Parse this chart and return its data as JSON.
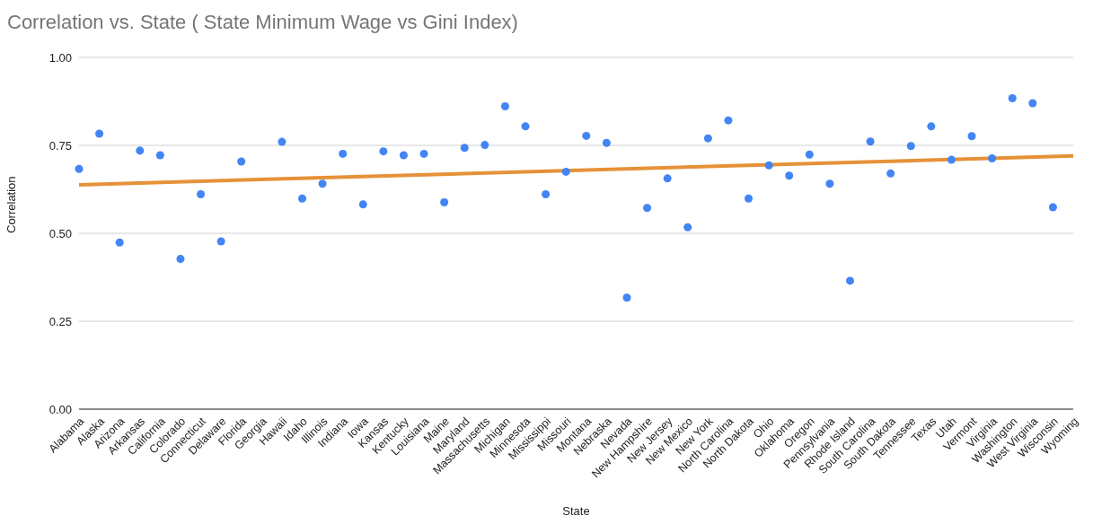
{
  "chart_data": {
    "type": "scatter",
    "title": "Correlation vs. State ( State Minimum Wage vs Gini Index)",
    "xlabel": "State",
    "ylabel": "Correlation",
    "categories": [
      "Alabama",
      "Alaska",
      "Arizona",
      "Arkansas",
      "California",
      "Colorado",
      "Connecticut",
      "Delaware",
      "Florida",
      "Georgia",
      "Hawaii",
      "Idaho",
      "Illinois",
      "Indiana",
      "Iowa",
      "Kansas",
      "Kentucky",
      "Louisiana",
      "Maine",
      "Maryland",
      "Massachusetts",
      "Michigan",
      "Minnesota",
      "Mississippi",
      "Missouri",
      "Montana",
      "Nebraska",
      "Nevada",
      "New Hampshire",
      "New Jersey",
      "New Mexico",
      "New York",
      "North Carolina",
      "North Dakota",
      "Ohio",
      "Oklahoma",
      "Oregon",
      "Pennsylvania",
      "Rhode Island",
      "South Carolina",
      "South Dakota",
      "Tennessee",
      "Texas",
      "Utah",
      "Vermont",
      "Virginia",
      "Washington",
      "West Virginia",
      "Wisconsin",
      "Wyoming"
    ],
    "series": [
      {
        "color": "#4285f4",
        "marker": "circle",
        "values": [
          0.683,
          0.783,
          0.474,
          0.735,
          0.722,
          0.427,
          0.611,
          0.477,
          0.704,
          null,
          0.76,
          0.599,
          0.641,
          0.726,
          0.582,
          0.733,
          0.722,
          0.726,
          0.588,
          0.743,
          0.751,
          0.861,
          0.804,
          0.611,
          0.675,
          0.777,
          0.757,
          0.317,
          0.572,
          0.656,
          0.517,
          0.77,
          0.821,
          0.599,
          0.693,
          0.664,
          0.724,
          0.641,
          0.365,
          0.761,
          0.67,
          0.748,
          0.804,
          0.709,
          0.776,
          0.713,
          0.884,
          0.87,
          0.574,
          null
        ]
      },
      {
        "type": "line",
        "marker": "none",
        "color": "#e69138",
        "values": [
          0.638,
          null,
          null,
          null,
          null,
          null,
          null,
          null,
          null,
          null,
          null,
          null,
          null,
          null,
          null,
          null,
          null,
          null,
          null,
          null,
          null,
          null,
          null,
          null,
          null,
          null,
          null,
          null,
          null,
          null,
          null,
          null,
          null,
          null,
          null,
          null,
          null,
          null,
          null,
          null,
          null,
          null,
          null,
          null,
          null,
          null,
          null,
          null,
          null,
          0.72
        ]
      }
    ],
    "ylim": [
      0,
      1
    ],
    "yticks": [
      {
        "value": 0,
        "label": "0.00"
      },
      {
        "value": 0.25,
        "label": "0.25"
      },
      {
        "value": 0.5,
        "label": "0.50"
      },
      {
        "value": 0.75,
        "label": "0.75"
      },
      {
        "value": 1,
        "label": "1.00"
      }
    ],
    "grid": "y"
  }
}
